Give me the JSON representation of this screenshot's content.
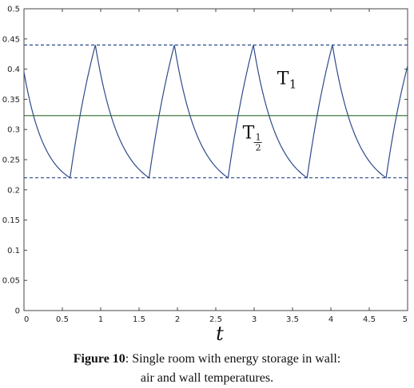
{
  "chart_data": {
    "type": "line",
    "xlabel": "t",
    "ylabel": "",
    "xlim": [
      0,
      5
    ],
    "ylim": [
      0,
      0.5
    ],
    "xticks": [
      0,
      0.5,
      1,
      1.5,
      2,
      2.5,
      3,
      3.5,
      4,
      4.5,
      5
    ],
    "xtick_labels": [
      "0",
      "0.5",
      "1",
      "1.5",
      "2",
      "2.5",
      "3",
      "3.5",
      "4",
      "4.5",
      "5"
    ],
    "yticks": [
      0,
      0.05,
      0.1,
      0.15,
      0.2,
      0.25,
      0.3,
      0.35,
      0.4,
      0.45,
      0.5
    ],
    "ytick_labels": [
      "0",
      "0.05",
      "0.1",
      "0.15",
      "0.2",
      "0.25",
      "0.3",
      "0.35",
      "0.4",
      "0.45",
      "0.5"
    ],
    "grid": false,
    "series": [
      {
        "name": "T1",
        "color": "#2e4a8c",
        "style": "solid",
        "x": [
          0,
          0.6,
          0.93,
          1.63,
          1.96,
          2.66,
          2.99,
          3.69,
          4.02,
          4.72,
          5.0
        ],
        "y": [
          0.395,
          0.22,
          0.44,
          0.22,
          0.44,
          0.22,
          0.44,
          0.22,
          0.44,
          0.22,
          0.405
        ]
      },
      {
        "name": "T½",
        "color": "#2f6b2f",
        "style": "solid",
        "x": [
          0,
          5
        ],
        "y": [
          0.323,
          0.323
        ]
      },
      {
        "name": "upper bound",
        "color": "#2e4a8c",
        "style": "dashed",
        "x": [
          0,
          5
        ],
        "y": [
          0.44,
          0.44
        ]
      },
      {
        "name": "lower bound",
        "color": "#2e4a8c",
        "style": "dashed",
        "x": [
          0,
          5
        ],
        "y": [
          0.22,
          0.22
        ]
      }
    ],
    "annotations": [
      {
        "text": "T",
        "sub": "1",
        "x": 3.3,
        "y": 0.375
      },
      {
        "text": "T",
        "frac_num": "1",
        "frac_den": "2",
        "x": 2.85,
        "y": 0.285
      }
    ]
  },
  "caption": {
    "label": "Figure 10",
    "line1": ": Single room with energy storage in wall:",
    "line2": "air and wall temperatures."
  }
}
